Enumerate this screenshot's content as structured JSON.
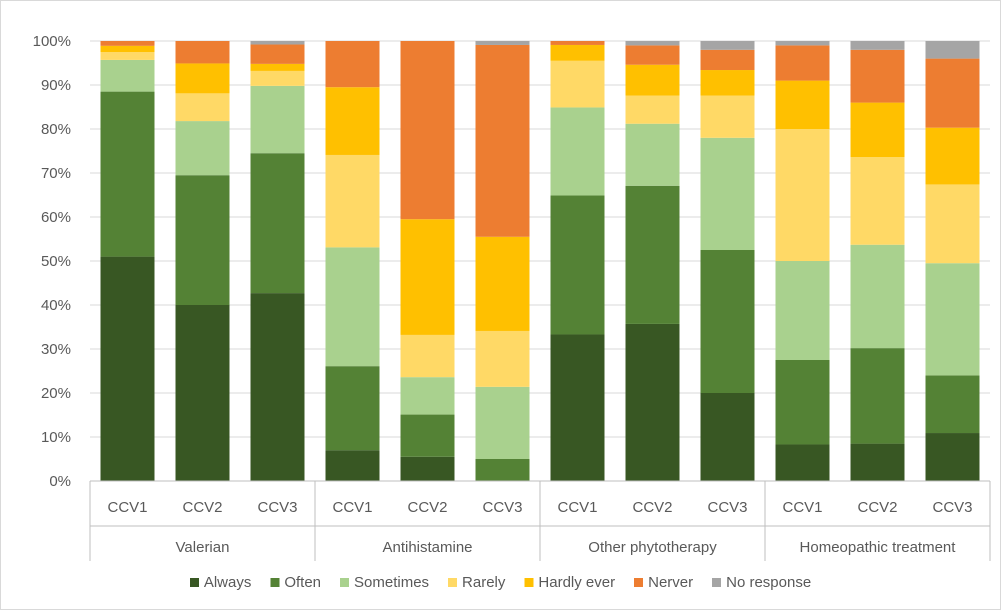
{
  "chart_data": {
    "type": "bar",
    "stacked": true,
    "stack_mode": "percent",
    "groups": [
      "Valerian",
      "Antihistamine",
      "Other phytotherapy",
      "Homeopathic treatment"
    ],
    "subcategories": [
      "CCV1",
      "CCV2",
      "CCV3"
    ],
    "categories": [
      "Valerian CCV1",
      "Valerian CCV2",
      "Valerian CCV3",
      "Antihistamine CCV1",
      "Antihistamine CCV2",
      "Antihistamine CCV3",
      "Other phytotherapy CCV1",
      "Other phytotherapy CCV2",
      "Other phytotherapy CCV3",
      "Homeopathic treatment CCV1",
      "Homeopathic treatment CCV2",
      "Homeopathic treatment CCV3"
    ],
    "series": [
      {
        "name": "Always",
        "color": "#385723",
        "values": [
          51,
          40,
          42.7,
          7,
          5.5,
          0,
          33.3,
          35.7,
          20,
          8.3,
          8.5,
          10.9
        ]
      },
      {
        "name": "Often",
        "color": "#548235",
        "values": [
          37.5,
          29.5,
          31.8,
          19.1,
          9.6,
          5,
          31.6,
          31.4,
          32.5,
          19.2,
          21.7,
          13.1
        ]
      },
      {
        "name": "Sometimes",
        "color": "#a9d18e",
        "values": [
          7.2,
          12.3,
          15.3,
          27,
          8.5,
          16.4,
          20,
          14.1,
          25.5,
          22.5,
          23.5,
          25.5
        ]
      },
      {
        "name": "Rarely",
        "color": "#ffd966",
        "values": [
          1.8,
          6.3,
          3.4,
          21,
          9.6,
          12.7,
          10.6,
          6.4,
          9.6,
          30,
          19.9,
          17.9
        ]
      },
      {
        "name": "Hardly ever",
        "color": "#ffc000",
        "values": [
          1.4,
          6.8,
          1.6,
          15.4,
          26.3,
          21.4,
          3.6,
          7,
          5.8,
          11,
          12.4,
          12.9
        ]
      },
      {
        "name": "Nerver",
        "color": "#ed7d31",
        "values": [
          1.1,
          5.1,
          4.4,
          10.5,
          40.5,
          43.6,
          0.9,
          4.4,
          4.6,
          8,
          12,
          15.7
        ]
      },
      {
        "name": "No response",
        "color": "#a5a5a5",
        "values": [
          0,
          0,
          0.8,
          0,
          0,
          0.9,
          0,
          1,
          2,
          1,
          2,
          4
        ]
      }
    ],
    "title": "",
    "xlabel": "",
    "ylabel": "",
    "ylim": [
      0,
      100
    ],
    "yticks": [
      "0%",
      "10%",
      "20%",
      "30%",
      "40%",
      "50%",
      "60%",
      "70%",
      "80%",
      "90%",
      "100%"
    ],
    "grid": true,
    "legend_position": "bottom"
  }
}
